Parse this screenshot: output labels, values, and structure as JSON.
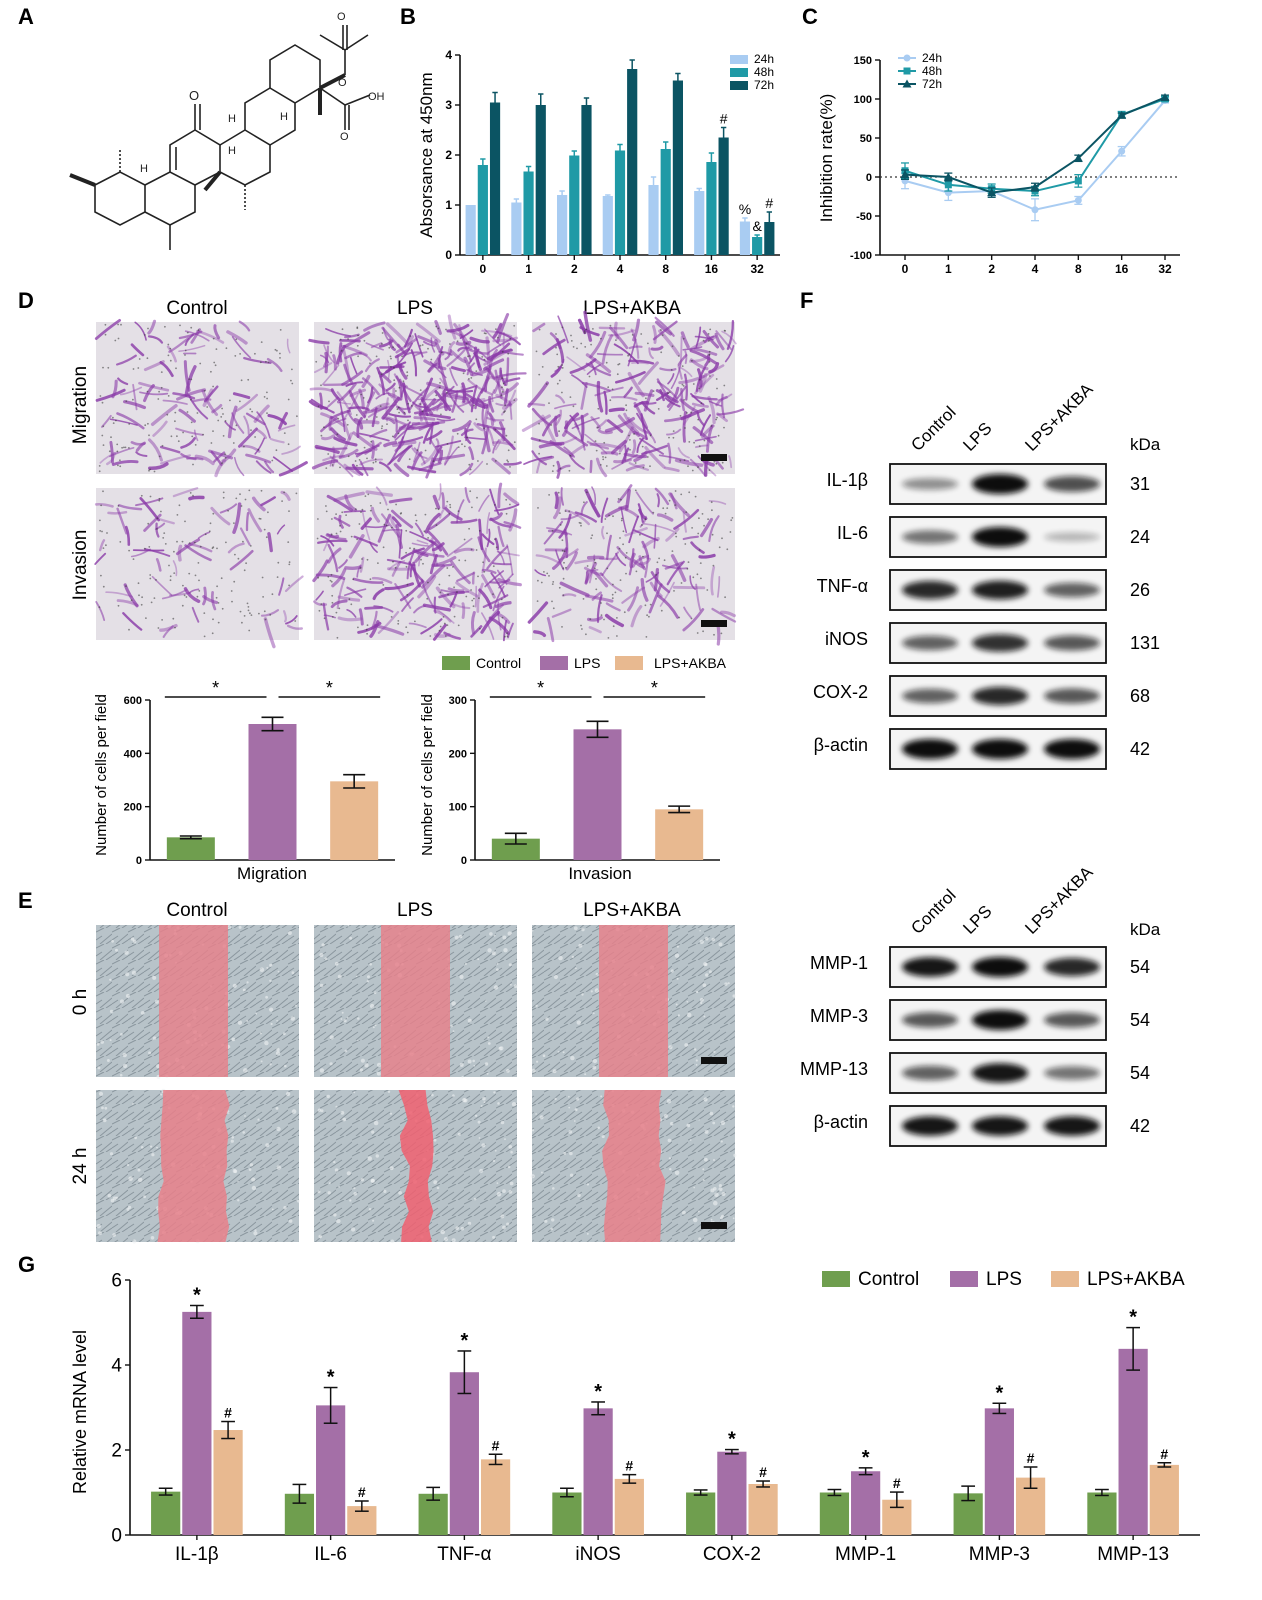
{
  "panels": {
    "a": "A",
    "b": "B",
    "c": "C",
    "d": "D",
    "e": "E",
    "f": "F",
    "g": "G"
  },
  "colors": {
    "h24": "#a9ccf2",
    "h48": "#1f9aa6",
    "h72": "#0b5463",
    "control": "#6f9e4e",
    "lps": "#a46fa7",
    "lps_akba": "#e8b990",
    "stain": "#8a3aa8",
    "scratch": "#e8808a"
  },
  "structure": {
    "atoms": [
      "O",
      "H",
      "H",
      "H",
      "OH",
      "O",
      "O",
      "O",
      "H"
    ]
  },
  "chart_data": [
    {
      "id": "B",
      "type": "bar",
      "categories": [
        "0",
        "1",
        "2",
        "4",
        "8",
        "16",
        "32"
      ],
      "series": [
        {
          "name": "24h",
          "values": [
            1.0,
            1.05,
            1.2,
            1.18,
            1.4,
            1.28,
            0.67
          ],
          "errors": [
            0.0,
            0.07,
            0.08,
            0.02,
            0.16,
            0.05,
            0.07
          ]
        },
        {
          "name": "48h",
          "values": [
            1.8,
            1.67,
            1.99,
            2.09,
            2.12,
            1.86,
            0.36
          ],
          "errors": [
            0.12,
            0.1,
            0.09,
            0.12,
            0.14,
            0.18,
            0.04
          ]
        },
        {
          "name": "72h",
          "values": [
            3.05,
            3.0,
            3.0,
            3.72,
            3.49,
            2.35,
            0.66
          ],
          "errors": [
            0.2,
            0.22,
            0.14,
            0.18,
            0.14,
            0.2,
            0.2
          ]
        }
      ],
      "ylabel": "Absorsance at 450nm",
      "yticks": [
        0,
        1,
        2,
        3,
        4
      ],
      "ylim": [
        0,
        4
      ],
      "annotations": [
        {
          "text": "#",
          "category": "16",
          "series": "72h"
        },
        {
          "text": "%",
          "category": "32",
          "series": "24h"
        },
        {
          "text": "&",
          "category": "32",
          "series": "48h"
        },
        {
          "text": "#",
          "category": "32",
          "series": "72h"
        }
      ],
      "legend_position": "top-right"
    },
    {
      "id": "C",
      "type": "line",
      "x": [
        "0",
        "1",
        "2",
        "4",
        "8",
        "16",
        "32"
      ],
      "series": [
        {
          "name": "24h",
          "marker": "circle",
          "values": [
            -5,
            -20,
            -18,
            -42,
            -30,
            33,
            98
          ],
          "errors": [
            10,
            10,
            6,
            14,
            5,
            6,
            3
          ]
        },
        {
          "name": "48h",
          "marker": "square",
          "values": [
            8,
            -10,
            -15,
            -18,
            -5,
            80,
            100
          ],
          "errors": [
            10,
            8,
            6,
            6,
            8,
            4,
            3
          ]
        },
        {
          "name": "72h",
          "marker": "triangle",
          "values": [
            3,
            0,
            -20,
            -13,
            24,
            79,
            102
          ],
          "errors": [
            6,
            5,
            6,
            5,
            4,
            3,
            3
          ]
        }
      ],
      "ylabel": "Inhibition rate(%)",
      "yticks": [
        -100,
        -50,
        0,
        50,
        100,
        150
      ],
      "ylim": [
        -100,
        150
      ],
      "reference_line": 0,
      "legend_position": "top-left"
    },
    {
      "id": "D-migration",
      "type": "bar",
      "categories": [
        "Control",
        "LPS",
        "LPS+AKBA"
      ],
      "values": [
        85,
        510,
        295
      ],
      "errors": [
        5,
        25,
        25
      ],
      "xlabel": "Migration",
      "ylabel": "Number of cells per field",
      "yticks": [
        0,
        200,
        400,
        600
      ],
      "ylim": [
        0,
        600
      ],
      "significance": [
        "*",
        "*"
      ]
    },
    {
      "id": "D-invasion",
      "type": "bar",
      "categories": [
        "Control",
        "LPS",
        "LPS+AKBA"
      ],
      "values": [
        40,
        245,
        95
      ],
      "errors": [
        10,
        15,
        6
      ],
      "xlabel": "Invasion",
      "ylabel": "Number of cells per field",
      "yticks": [
        0,
        100,
        200,
        300
      ],
      "ylim": [
        0,
        300
      ],
      "significance": [
        "*",
        "*"
      ]
    },
    {
      "id": "G",
      "type": "bar",
      "categories": [
        "IL-1β",
        "IL-6",
        "TNF-α",
        "iNOS",
        "COX-2",
        "MMP-1",
        "MMP-3",
        "MMP-13"
      ],
      "series": [
        {
          "name": "Control",
          "values": [
            1.02,
            0.97,
            0.97,
            1.0,
            1.0,
            1.0,
            0.98,
            1.0
          ],
          "errors": [
            0.08,
            0.22,
            0.15,
            0.1,
            0.06,
            0.07,
            0.17,
            0.07
          ]
        },
        {
          "name": "LPS",
          "values": [
            5.25,
            3.05,
            3.83,
            2.98,
            1.96,
            1.5,
            2.98,
            4.38
          ],
          "errors": [
            0.15,
            0.42,
            0.5,
            0.15,
            0.05,
            0.08,
            0.12,
            0.5
          ]
        },
        {
          "name": "LPS+AKBA",
          "values": [
            2.47,
            0.68,
            1.78,
            1.32,
            1.2,
            0.83,
            1.35,
            1.65
          ],
          "errors": [
            0.2,
            0.12,
            0.12,
            0.1,
            0.07,
            0.18,
            0.25,
            0.05
          ]
        }
      ],
      "ylabel": "Relative mRNA level",
      "yticks": [
        0,
        2,
        4,
        6
      ],
      "ylim": [
        0,
        6
      ],
      "markers": {
        "LPS": "*",
        "LPS+AKBA": "#"
      },
      "legend_position": "top-right"
    }
  ],
  "micrographs": {
    "groups": [
      "Control",
      "LPS",
      "LPS+AKBA"
    ],
    "migration_label": "Migration",
    "invasion_label": "Invasion",
    "legend": [
      "Control",
      "LPS",
      "LPS+AKBA"
    ],
    "densities": {
      "migration": [
        0.22,
        1.0,
        0.6
      ],
      "invasion": [
        0.08,
        0.5,
        0.28
      ]
    },
    "scratch": {
      "row_labels": [
        "0 h",
        "24 h"
      ],
      "groups": [
        "Control",
        "LPS",
        "LPS+AKBA"
      ],
      "gap_width_fraction": [
        [
          0.34,
          0.34,
          0.34
        ],
        [
          0.33,
          0.12,
          0.28
        ]
      ]
    }
  },
  "western_top": {
    "lanes": [
      "Control",
      "LPS",
      "LPS+AKBA"
    ],
    "kda_label": "kDa",
    "rows": [
      {
        "name": "IL-1β",
        "kda": "31",
        "intensity": [
          0.3,
          1.0,
          0.65
        ]
      },
      {
        "name": "IL-6",
        "kda": "24",
        "intensity": [
          0.45,
          1.0,
          0.1
        ]
      },
      {
        "name": "TNF-α",
        "kda": "26",
        "intensity": [
          0.85,
          0.9,
          0.55
        ]
      },
      {
        "name": "iNOS",
        "kda": "131",
        "intensity": [
          0.55,
          0.8,
          0.6
        ]
      },
      {
        "name": "COX-2",
        "kda": "68",
        "intensity": [
          0.55,
          0.85,
          0.6
        ]
      },
      {
        "name": "β-actin",
        "kda": "42",
        "intensity": [
          1.0,
          1.0,
          1.0
        ]
      }
    ]
  },
  "western_bottom": {
    "lanes": [
      "Control",
      "LPS",
      "LPS+AKBA"
    ],
    "kda_label": "kDa",
    "rows": [
      {
        "name": "MMP-1",
        "kda": "54",
        "intensity": [
          0.95,
          1.0,
          0.85
        ]
      },
      {
        "name": "MMP-3",
        "kda": "54",
        "intensity": [
          0.6,
          1.0,
          0.6
        ]
      },
      {
        "name": "MMP-13",
        "kda": "54",
        "intensity": [
          0.55,
          0.95,
          0.45
        ]
      },
      {
        "name": "β-actin",
        "kda": "42",
        "intensity": [
          0.95,
          0.95,
          0.95
        ]
      }
    ]
  }
}
